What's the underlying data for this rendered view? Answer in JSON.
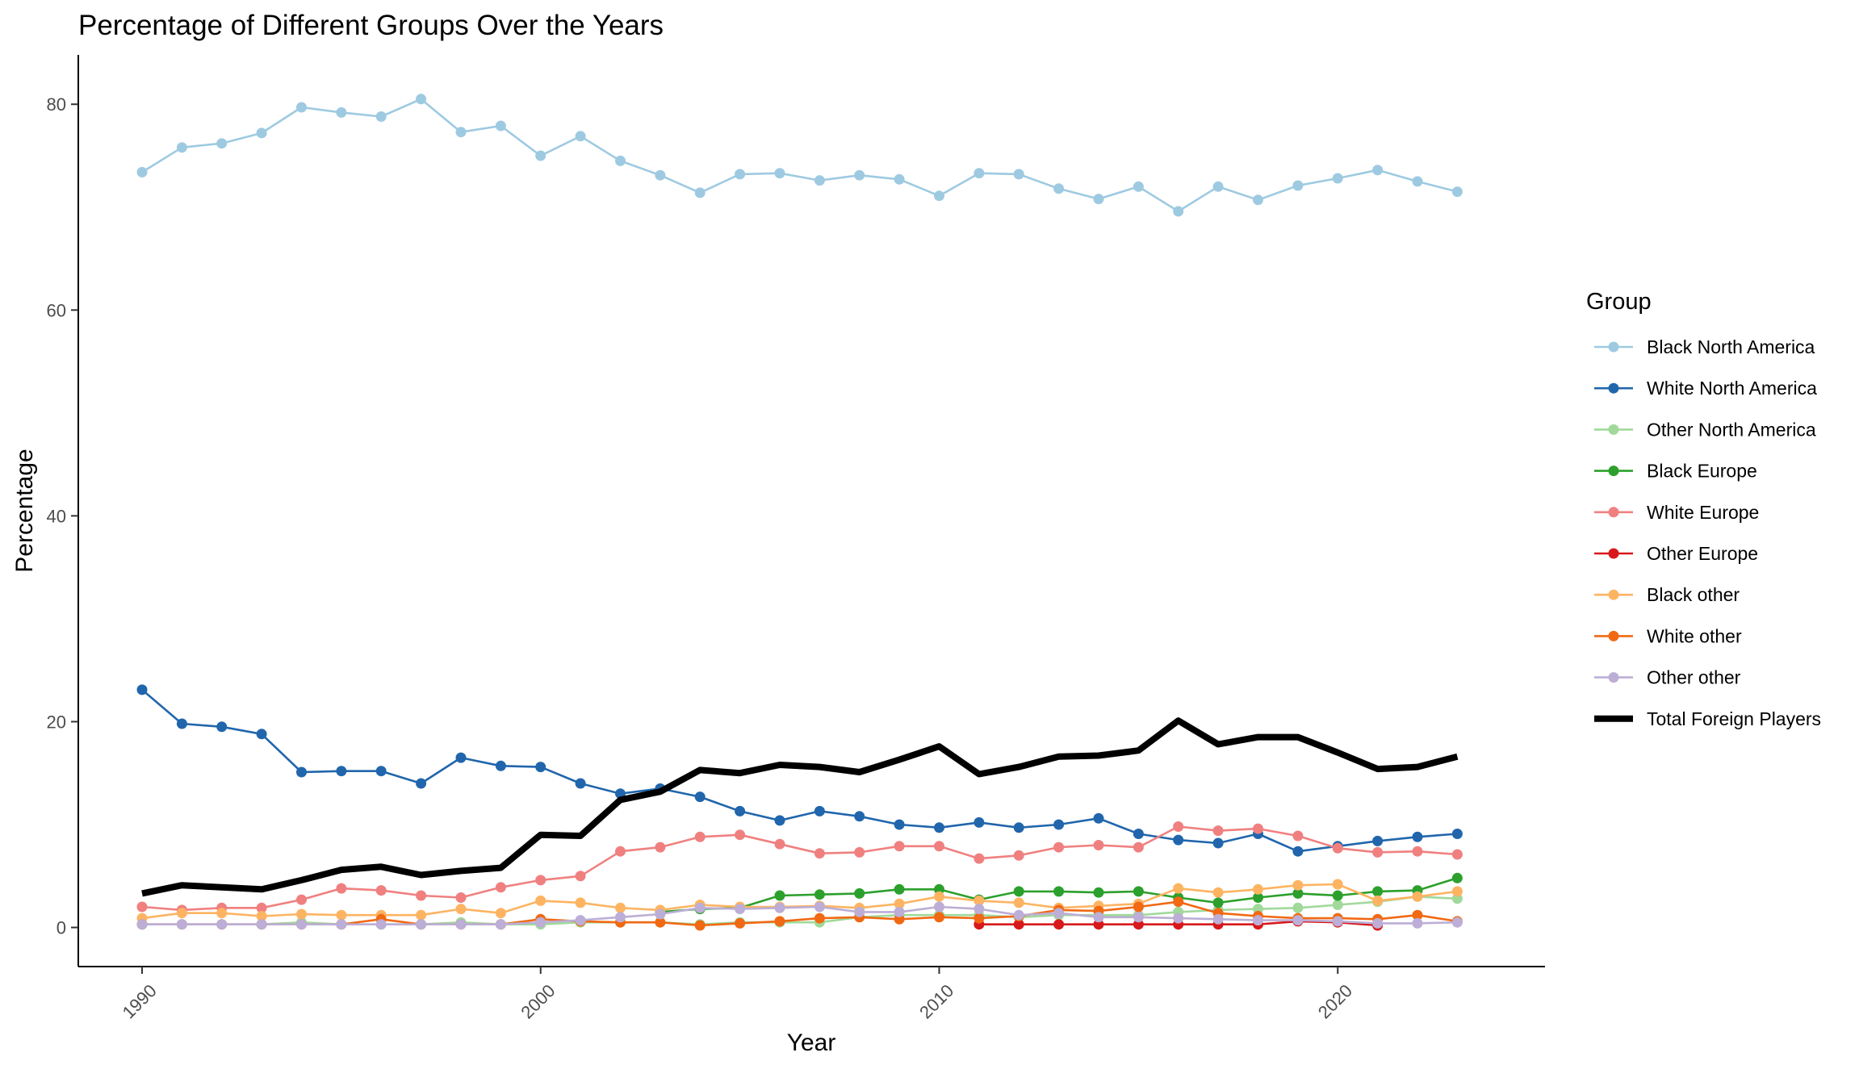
{
  "chart_data": {
    "type": "line",
    "title": "Percentage of Different Groups Over the Years",
    "xlabel": "Year",
    "ylabel": "Percentage",
    "xlim": [
      1988.4,
      2025.2
    ],
    "ylim": [
      -3.8,
      84.8
    ],
    "x_ticks": [
      1990,
      2000,
      2010,
      2020
    ],
    "y_ticks": [
      0,
      20,
      40,
      60,
      80
    ],
    "grid": false,
    "legend_title": "Group",
    "legend_position": "right",
    "series": [
      {
        "name": "Black North America",
        "color": "#9ecae1",
        "kind": "points",
        "x": [
          1990,
          1991,
          1992,
          1993,
          1994,
          1995,
          1996,
          1997,
          1998,
          1999,
          2000,
          2001,
          2002,
          2003,
          2004,
          2005,
          2006,
          2007,
          2008,
          2009,
          2010,
          2011,
          2012,
          2013,
          2014,
          2015,
          2016,
          2017,
          2018,
          2019,
          2020,
          2021,
          2022,
          2023
        ],
        "values": [
          73.4,
          75.8,
          76.2,
          77.2,
          79.7,
          79.2,
          78.8,
          80.5,
          77.3,
          77.9,
          75.0,
          76.9,
          74.5,
          73.1,
          71.4,
          73.2,
          73.3,
          72.6,
          73.1,
          72.7,
          71.1,
          73.3,
          73.2,
          71.8,
          70.8,
          72.0,
          69.6,
          72.0,
          70.7,
          72.1,
          72.8,
          73.6,
          72.5,
          71.5
        ]
      },
      {
        "name": "White North America",
        "color": "#2166ac",
        "kind": "points",
        "x": [
          1990,
          1991,
          1992,
          1993,
          1994,
          1995,
          1996,
          1997,
          1998,
          1999,
          2000,
          2001,
          2002,
          2003,
          2004,
          2005,
          2006,
          2007,
          2008,
          2009,
          2010,
          2011,
          2012,
          2013,
          2014,
          2015,
          2016,
          2017,
          2018,
          2019,
          2020,
          2021,
          2022,
          2023
        ],
        "values": [
          23.1,
          19.8,
          19.5,
          18.8,
          15.1,
          15.2,
          15.2,
          14.0,
          16.5,
          15.7,
          15.6,
          14.0,
          13.0,
          13.5,
          12.7,
          11.3,
          10.4,
          11.3,
          10.8,
          10.0,
          9.7,
          10.2,
          9.7,
          10.0,
          10.6,
          9.1,
          8.5,
          8.2,
          9.1,
          7.4,
          7.9,
          8.4,
          8.8,
          9.1
        ]
      },
      {
        "name": "Other North America",
        "color": "#a1d99b",
        "kind": "points",
        "x": [
          1990,
          1991,
          1992,
          1993,
          1994,
          1995,
          1996,
          1997,
          1998,
          1999,
          2000,
          2001,
          2002,
          2003,
          2004,
          2005,
          2006,
          2007,
          2008,
          2009,
          2010,
          2011,
          2012,
          2013,
          2014,
          2015,
          2016,
          2017,
          2018,
          2019,
          2020,
          2021,
          2022,
          2023
        ],
        "values": [
          0.3,
          0.3,
          0.3,
          0.3,
          0.5,
          0.3,
          0.3,
          0.3,
          0.5,
          0.3,
          0.3,
          0.5,
          0.5,
          0.5,
          0.3,
          0.5,
          0.5,
          0.5,
          1.0,
          1.2,
          1.2,
          1.2,
          1.0,
          1.2,
          1.2,
          1.2,
          1.5,
          1.7,
          1.8,
          1.9,
          2.2,
          2.5,
          3.0,
          2.8
        ]
      },
      {
        "name": "Black Europe",
        "color": "#2ca02c",
        "kind": "points",
        "x": [
          2003,
          2004,
          2005,
          2006,
          2007,
          2008,
          2009,
          2010,
          2011,
          2012,
          2013,
          2014,
          2015,
          2016,
          2017,
          2018,
          2019,
          2020,
          2021,
          2022,
          2023
        ],
        "values": [
          1.5,
          1.8,
          1.9,
          3.1,
          3.2,
          3.3,
          3.7,
          3.7,
          2.7,
          3.5,
          3.5,
          3.4,
          3.5,
          2.9,
          2.4,
          2.9,
          3.3,
          3.1,
          3.5,
          3.6,
          4.8
        ]
      },
      {
        "name": "White Europe",
        "color": "#f08080",
        "kind": "points",
        "x": [
          1990,
          1991,
          1992,
          1993,
          1994,
          1995,
          1996,
          1997,
          1998,
          1999,
          2000,
          2001,
          2002,
          2003,
          2004,
          2005,
          2006,
          2007,
          2008,
          2009,
          2010,
          2011,
          2012,
          2013,
          2014,
          2015,
          2016,
          2017,
          2018,
          2019,
          2020,
          2021,
          2022,
          2023
        ],
        "values": [
          2.0,
          1.7,
          1.9,
          1.9,
          2.7,
          3.8,
          3.6,
          3.1,
          2.9,
          3.9,
          4.6,
          5.0,
          7.4,
          7.8,
          8.8,
          9.0,
          8.1,
          7.2,
          7.3,
          7.9,
          7.9,
          6.7,
          7.0,
          7.8,
          8.0,
          7.8,
          9.8,
          9.4,
          9.6,
          8.9,
          7.7,
          7.3,
          7.4,
          7.1
        ]
      },
      {
        "name": "Other Europe",
        "color": "#d7191c",
        "kind": "points",
        "x": [
          2011,
          2012,
          2013,
          2014,
          2015,
          2016,
          2017,
          2018,
          2019,
          2020,
          2021
        ],
        "values": [
          0.3,
          0.3,
          0.3,
          0.3,
          0.3,
          0.3,
          0.3,
          0.3,
          0.6,
          0.5,
          0.2
        ]
      },
      {
        "name": "Black other",
        "color": "#fdb462",
        "kind": "points",
        "x": [
          1990,
          1991,
          1992,
          1993,
          1994,
          1995,
          1996,
          1997,
          1998,
          1999,
          2000,
          2001,
          2002,
          2003,
          2004,
          2005,
          2006,
          2007,
          2008,
          2009,
          2010,
          2011,
          2012,
          2013,
          2014,
          2015,
          2016,
          2017,
          2018,
          2019,
          2020,
          2021,
          2022,
          2023
        ],
        "values": [
          0.9,
          1.4,
          1.4,
          1.1,
          1.3,
          1.2,
          1.2,
          1.2,
          1.8,
          1.4,
          2.6,
          2.4,
          1.9,
          1.7,
          2.2,
          2.0,
          2.0,
          2.1,
          1.9,
          2.3,
          3.0,
          2.6,
          2.4,
          1.9,
          2.1,
          2.3,
          3.8,
          3.4,
          3.7,
          4.1,
          4.2,
          2.6,
          3.0,
          3.5
        ]
      },
      {
        "name": "White other",
        "color": "#f16913",
        "kind": "points",
        "x": [
          1990,
          1991,
          1992,
          1993,
          1994,
          1995,
          1996,
          1997,
          1998,
          1999,
          2000,
          2001,
          2002,
          2003,
          2004,
          2005,
          2006,
          2007,
          2008,
          2009,
          2010,
          2011,
          2012,
          2013,
          2014,
          2015,
          2016,
          2017,
          2018,
          2019,
          2020,
          2021,
          2022,
          2023
        ],
        "values": [
          0.3,
          0.3,
          0.3,
          0.3,
          0.3,
          0.3,
          0.8,
          0.3,
          0.3,
          0.3,
          0.8,
          0.6,
          0.5,
          0.5,
          0.2,
          0.4,
          0.6,
          0.9,
          1.0,
          0.8,
          1.0,
          0.9,
          1.1,
          1.7,
          1.6,
          2.0,
          2.5,
          1.4,
          1.1,
          0.9,
          0.9,
          0.8,
          1.2,
          0.6
        ]
      },
      {
        "name": "Other other",
        "color": "#bcaed6",
        "kind": "points",
        "x": [
          1990,
          1991,
          1992,
          1993,
          1994,
          1995,
          1996,
          1997,
          1998,
          1999,
          2000,
          2001,
          2002,
          2003,
          2004,
          2005,
          2006,
          2007,
          2008,
          2009,
          2010,
          2011,
          2012,
          2013,
          2014,
          2015,
          2016,
          2017,
          2018,
          2019,
          2020,
          2021,
          2022,
          2023
        ],
        "values": [
          0.3,
          0.3,
          0.3,
          0.3,
          0.3,
          0.3,
          0.3,
          0.3,
          0.3,
          0.3,
          0.5,
          0.7,
          1.0,
          1.3,
          1.9,
          1.8,
          1.9,
          2.0,
          1.5,
          1.5,
          2.0,
          1.8,
          1.2,
          1.4,
          1.0,
          1.0,
          0.9,
          0.8,
          0.7,
          0.7,
          0.6,
          0.4,
          0.4,
          0.5
        ]
      },
      {
        "name": "Total Foreign Players",
        "color": "#000000",
        "kind": "thick",
        "x": [
          1990,
          1991,
          1992,
          1993,
          1994,
          1995,
          1996,
          1997,
          1998,
          1999,
          2000,
          2001,
          2002,
          2003,
          2004,
          2005,
          2006,
          2007,
          2008,
          2009,
          2010,
          2011,
          2012,
          2013,
          2014,
          2015,
          2016,
          2017,
          2018,
          2019,
          2020,
          2021,
          2022,
          2023
        ],
        "values": [
          3.3,
          4.1,
          3.9,
          3.7,
          4.6,
          5.6,
          5.9,
          5.1,
          5.5,
          5.8,
          9.0,
          8.9,
          12.4,
          13.2,
          15.3,
          15.0,
          15.8,
          15.6,
          15.1,
          16.3,
          17.6,
          14.9,
          15.6,
          16.6,
          16.7,
          17.2,
          20.1,
          17.8,
          18.5,
          18.5,
          17.0,
          15.4,
          15.6,
          16.6
        ]
      }
    ]
  }
}
